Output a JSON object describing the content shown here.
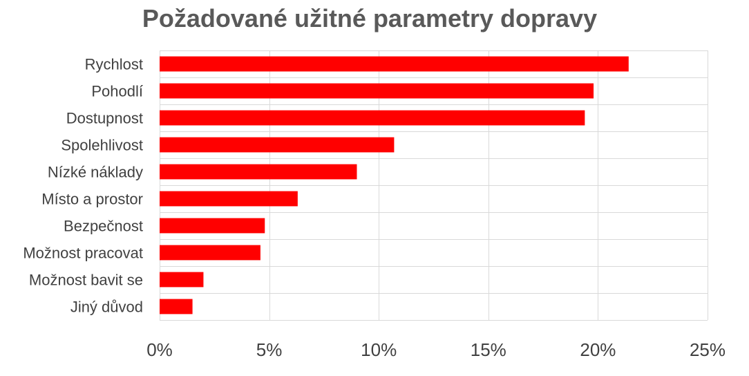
{
  "chart_data": {
    "type": "bar",
    "orientation": "horizontal",
    "title": "Požadované užitné parametry dopravy",
    "xlabel": "",
    "ylabel": "",
    "categories": [
      "Rychlost",
      "Pohodlí",
      "Dostupnost",
      "Spolehlivost",
      "Nízké náklady",
      "Místo a prostor",
      "Bezpečnost",
      "Možnost pracovat",
      "Možnost bavit se",
      "Jiný důvod"
    ],
    "values": [
      21.4,
      19.8,
      19.4,
      10.7,
      9.0,
      6.3,
      4.8,
      4.6,
      2.0,
      1.5
    ],
    "xlim": [
      0,
      25
    ],
    "ticks": [
      0,
      5,
      10,
      15,
      20,
      25
    ],
    "tick_labels": [
      "0%",
      "5%",
      "10%",
      "15%",
      "20%",
      "25%"
    ],
    "grid": true,
    "bar_color": "#ff0000"
  }
}
